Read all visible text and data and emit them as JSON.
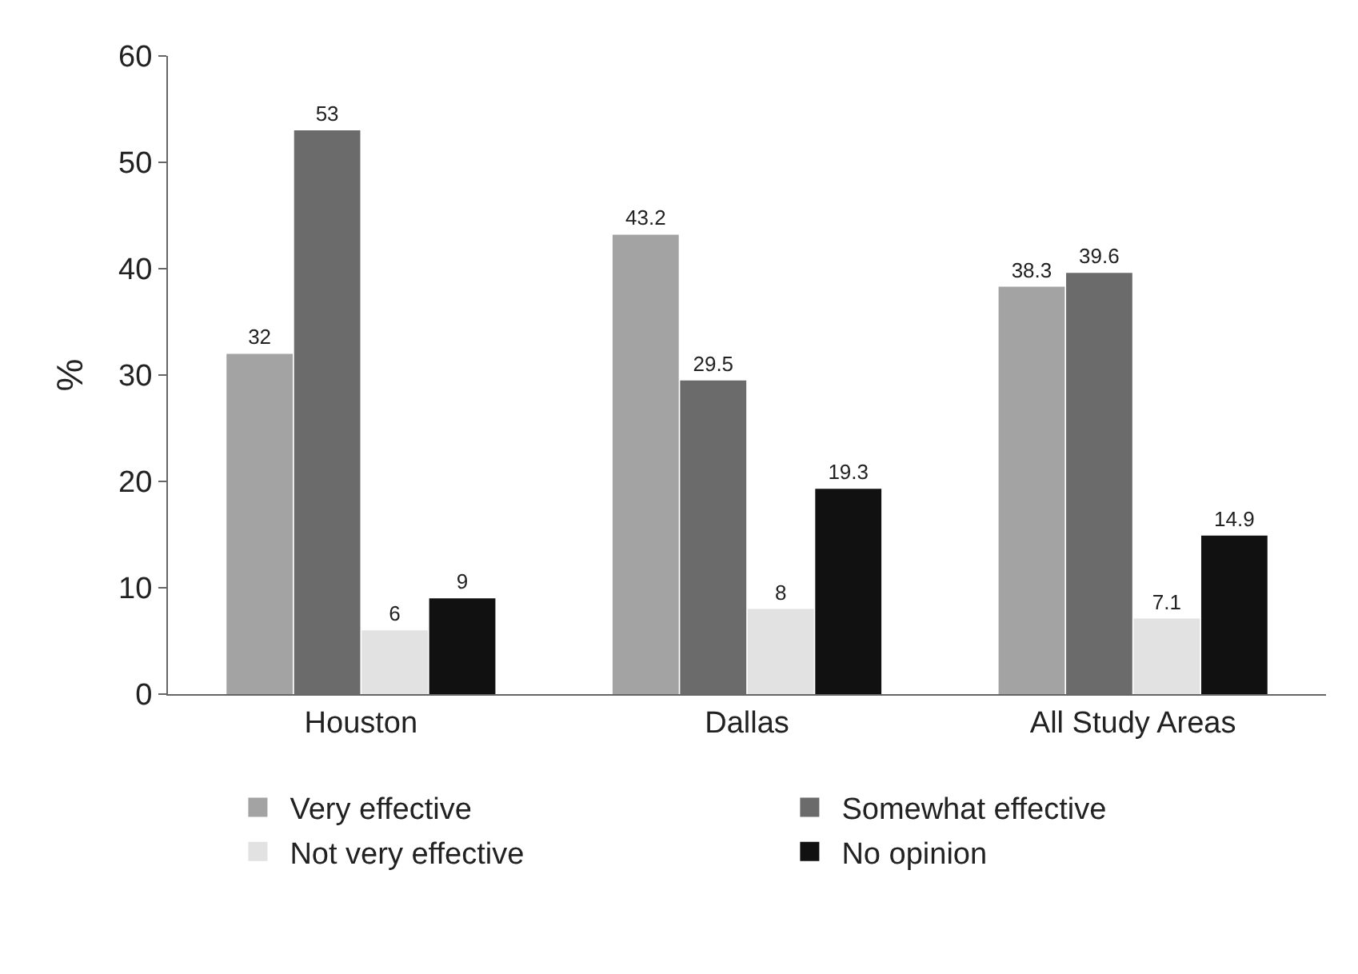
{
  "chart_data": {
    "type": "bar",
    "ylabel": "%",
    "categories": [
      "Houston",
      "Dallas",
      "All Study Areas"
    ],
    "series": [
      {
        "name": "Very effective",
        "color": "#a3a3a3",
        "values": [
          32,
          43.2,
          38.3
        ]
      },
      {
        "name": "Somewhat effective",
        "color": "#6b6b6b",
        "values": [
          53,
          29.5,
          39.6
        ]
      },
      {
        "name": "Not very effective",
        "color": "#e2e2e2",
        "values": [
          6,
          8,
          7.1
        ]
      },
      {
        "name": "No opinion",
        "color": "#111111",
        "values": [
          9,
          19.3,
          14.9
        ]
      }
    ],
    "ylim": [
      0,
      60
    ],
    "yticks": [
      0,
      10,
      20,
      30,
      40,
      50,
      60
    ],
    "grid": false,
    "legend": "bottom",
    "data_labels": true
  }
}
